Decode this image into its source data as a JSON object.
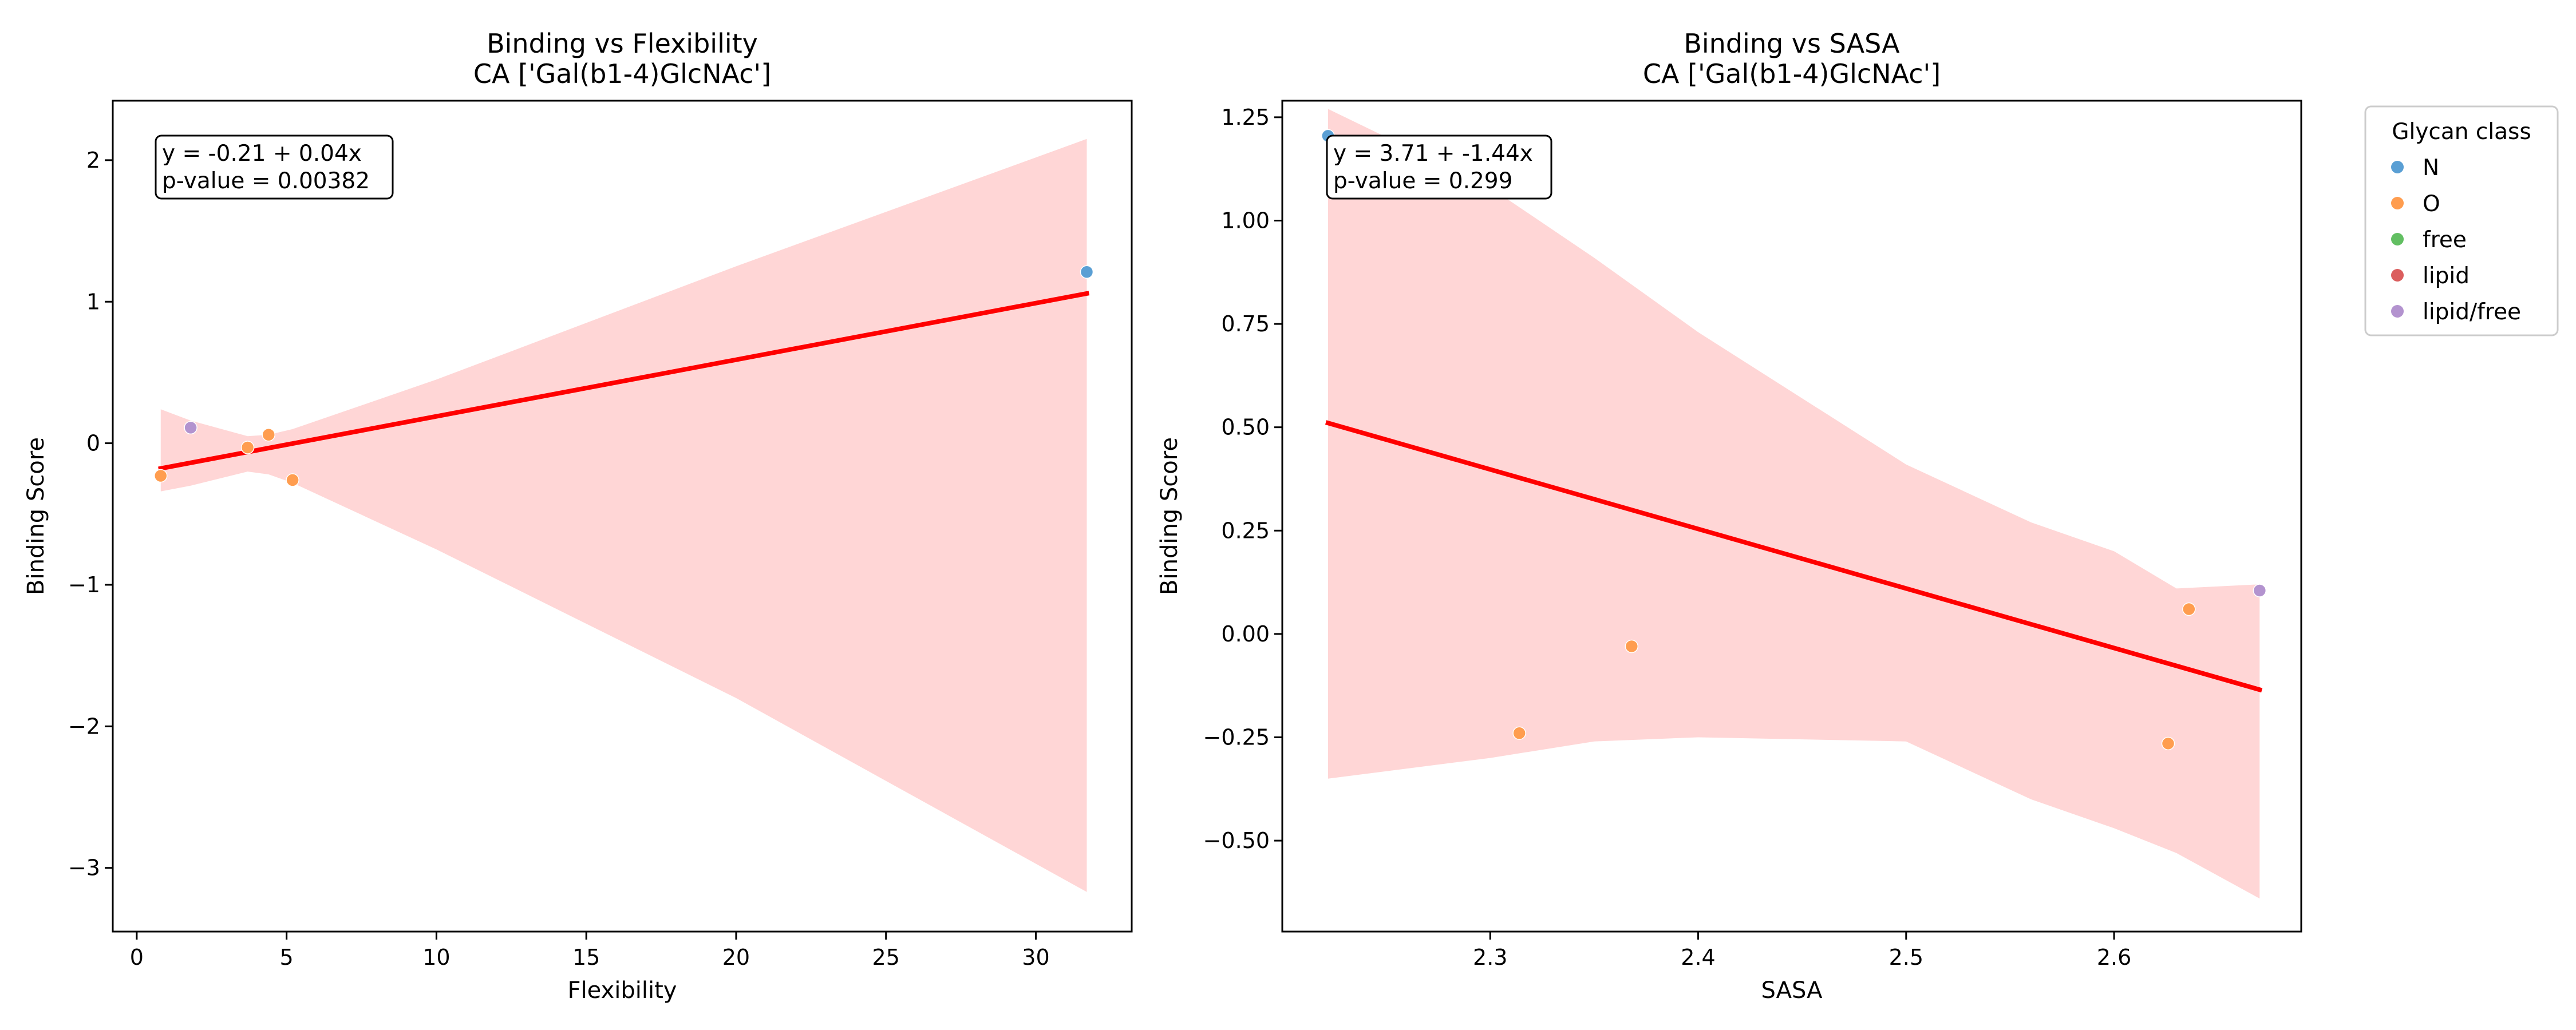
{
  "chart_data": [
    {
      "type": "scatter",
      "title": "Binding vs Flexibility",
      "subtitle": "CA ['Gal(b1-4)GlcNAc']",
      "xlabel": "Flexibility",
      "ylabel": "Binding Score",
      "xlim": [
        -0.8,
        33.2
      ],
      "ylim": [
        -3.45,
        2.42
      ],
      "xticks": [
        0,
        5,
        10,
        15,
        20,
        25,
        30
      ],
      "yticks": [
        -3,
        -2,
        -1,
        0,
        1,
        2
      ],
      "points": [
        {
          "x": 31.7,
          "y": 1.21,
          "class": "N"
        },
        {
          "x": 0.8,
          "y": -0.23,
          "class": "O"
        },
        {
          "x": 3.7,
          "y": -0.03,
          "class": "O"
        },
        {
          "x": 4.4,
          "y": 0.06,
          "class": "O"
        },
        {
          "x": 5.2,
          "y": -0.26,
          "class": "O"
        },
        {
          "x": 1.8,
          "y": 0.11,
          "class": "lipid/free"
        }
      ],
      "regression": {
        "intercept": -0.21,
        "slope": 0.04,
        "x_range": [
          0.8,
          31.7
        ],
        "color": "#ff0000"
      },
      "confidence_band": {
        "color": "#ffd6d6",
        "x": [
          0.8,
          1.8,
          3.7,
          4.4,
          5.2,
          10,
          20,
          31.7
        ],
        "upper": [
          0.24,
          0.16,
          0.05,
          0.06,
          0.1,
          0.45,
          1.25,
          2.15
        ],
        "lower": [
          -0.34,
          -0.3,
          -0.2,
          -0.22,
          -0.28,
          -0.75,
          -1.8,
          -3.17
        ]
      },
      "annotation": {
        "equation": "y = -0.21 + 0.04x",
        "pvalue": "p-value = 0.00382"
      },
      "grid": false
    },
    {
      "type": "scatter",
      "title": "Binding vs SASA",
      "subtitle": "CA ['Gal(b1-4)GlcNAc']",
      "xlabel": "SASA",
      "ylabel": "Binding Score",
      "xlim": [
        2.2,
        2.69
      ],
      "ylim": [
        -0.72,
        1.29
      ],
      "xticks": [
        2.3,
        2.4,
        2.5,
        2.6
      ],
      "yticks": [
        -0.5,
        -0.25,
        0.0,
        0.25,
        0.5,
        0.75,
        1.0,
        1.25
      ],
      "ytick_labels": [
        "−0.50",
        "−0.25",
        "0.00",
        "0.25",
        "0.50",
        "0.75",
        "1.00",
        "1.25"
      ],
      "points": [
        {
          "x": 2.222,
          "y": 1.205,
          "class": "N"
        },
        {
          "x": 2.314,
          "y": -0.24,
          "class": "O"
        },
        {
          "x": 2.368,
          "y": -0.03,
          "class": "O"
        },
        {
          "x": 2.626,
          "y": -0.265,
          "class": "O"
        },
        {
          "x": 2.636,
          "y": 0.06,
          "class": "O"
        },
        {
          "x": 2.67,
          "y": 0.105,
          "class": "lipid/free"
        }
      ],
      "regression": {
        "intercept": 3.71,
        "slope": -1.44,
        "x_range": [
          2.222,
          2.67
        ],
        "color": "#ff0000"
      },
      "confidence_band": {
        "color": "#ffd6d6",
        "x": [
          2.222,
          2.3,
          2.35,
          2.4,
          2.5,
          2.56,
          2.6,
          2.63,
          2.67
        ],
        "upper": [
          1.27,
          1.08,
          0.91,
          0.73,
          0.41,
          0.27,
          0.2,
          0.11,
          0.12
        ],
        "lower": [
          -0.35,
          -0.3,
          -0.26,
          -0.25,
          -0.26,
          -0.4,
          -0.47,
          -0.53,
          -0.64
        ]
      },
      "annotation": {
        "equation": "y = 3.71 + -1.44x",
        "pvalue": "p-value = 0.299"
      },
      "grid": false
    }
  ],
  "legend": {
    "title": "Glycan class",
    "placement": "outside-right-top",
    "items": [
      {
        "label": "N",
        "color": "#5a9fd4"
      },
      {
        "label": "O",
        "color": "#ff9d4f"
      },
      {
        "label": "free",
        "color": "#62bf62"
      },
      {
        "label": "lipid",
        "color": "#db5e5e"
      },
      {
        "label": "lipid/free",
        "color": "#b393cf"
      }
    ]
  }
}
